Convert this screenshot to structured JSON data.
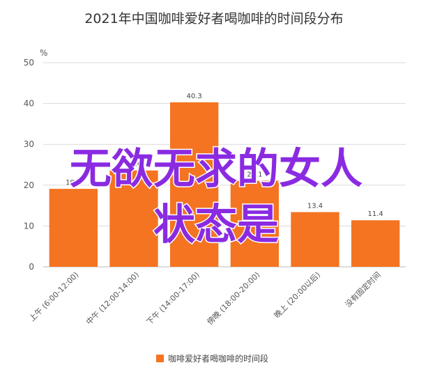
{
  "chart_data": {
    "type": "bar",
    "title": "2021年中国咖啡爱好者喝咖啡的时间段分布",
    "ylabel": "%",
    "xlabel": "",
    "ylim": [
      0,
      50
    ],
    "yticks": [
      0,
      10,
      20,
      30,
      40,
      50
    ],
    "grid": true,
    "legend_position": "bottom",
    "categories": [
      "上午 (6:00-12:00)",
      "中午 (12:00-14:00)",
      "下午 (14:00-17:00)",
      "傍晚 (18:00-20:00)",
      "晚上 (20:00以后)",
      "没有固定时间"
    ],
    "series": [
      {
        "name": "咖啡爱好者喝咖啡的时间段",
        "values": [
          19.1,
          23.6,
          40.3,
          21.1,
          13.4,
          11.4
        ],
        "color": "#f47421"
      }
    ]
  },
  "overlay": {
    "line1": "无欲无求的女人",
    "line2": "状态是",
    "color": "#8a2be2"
  }
}
